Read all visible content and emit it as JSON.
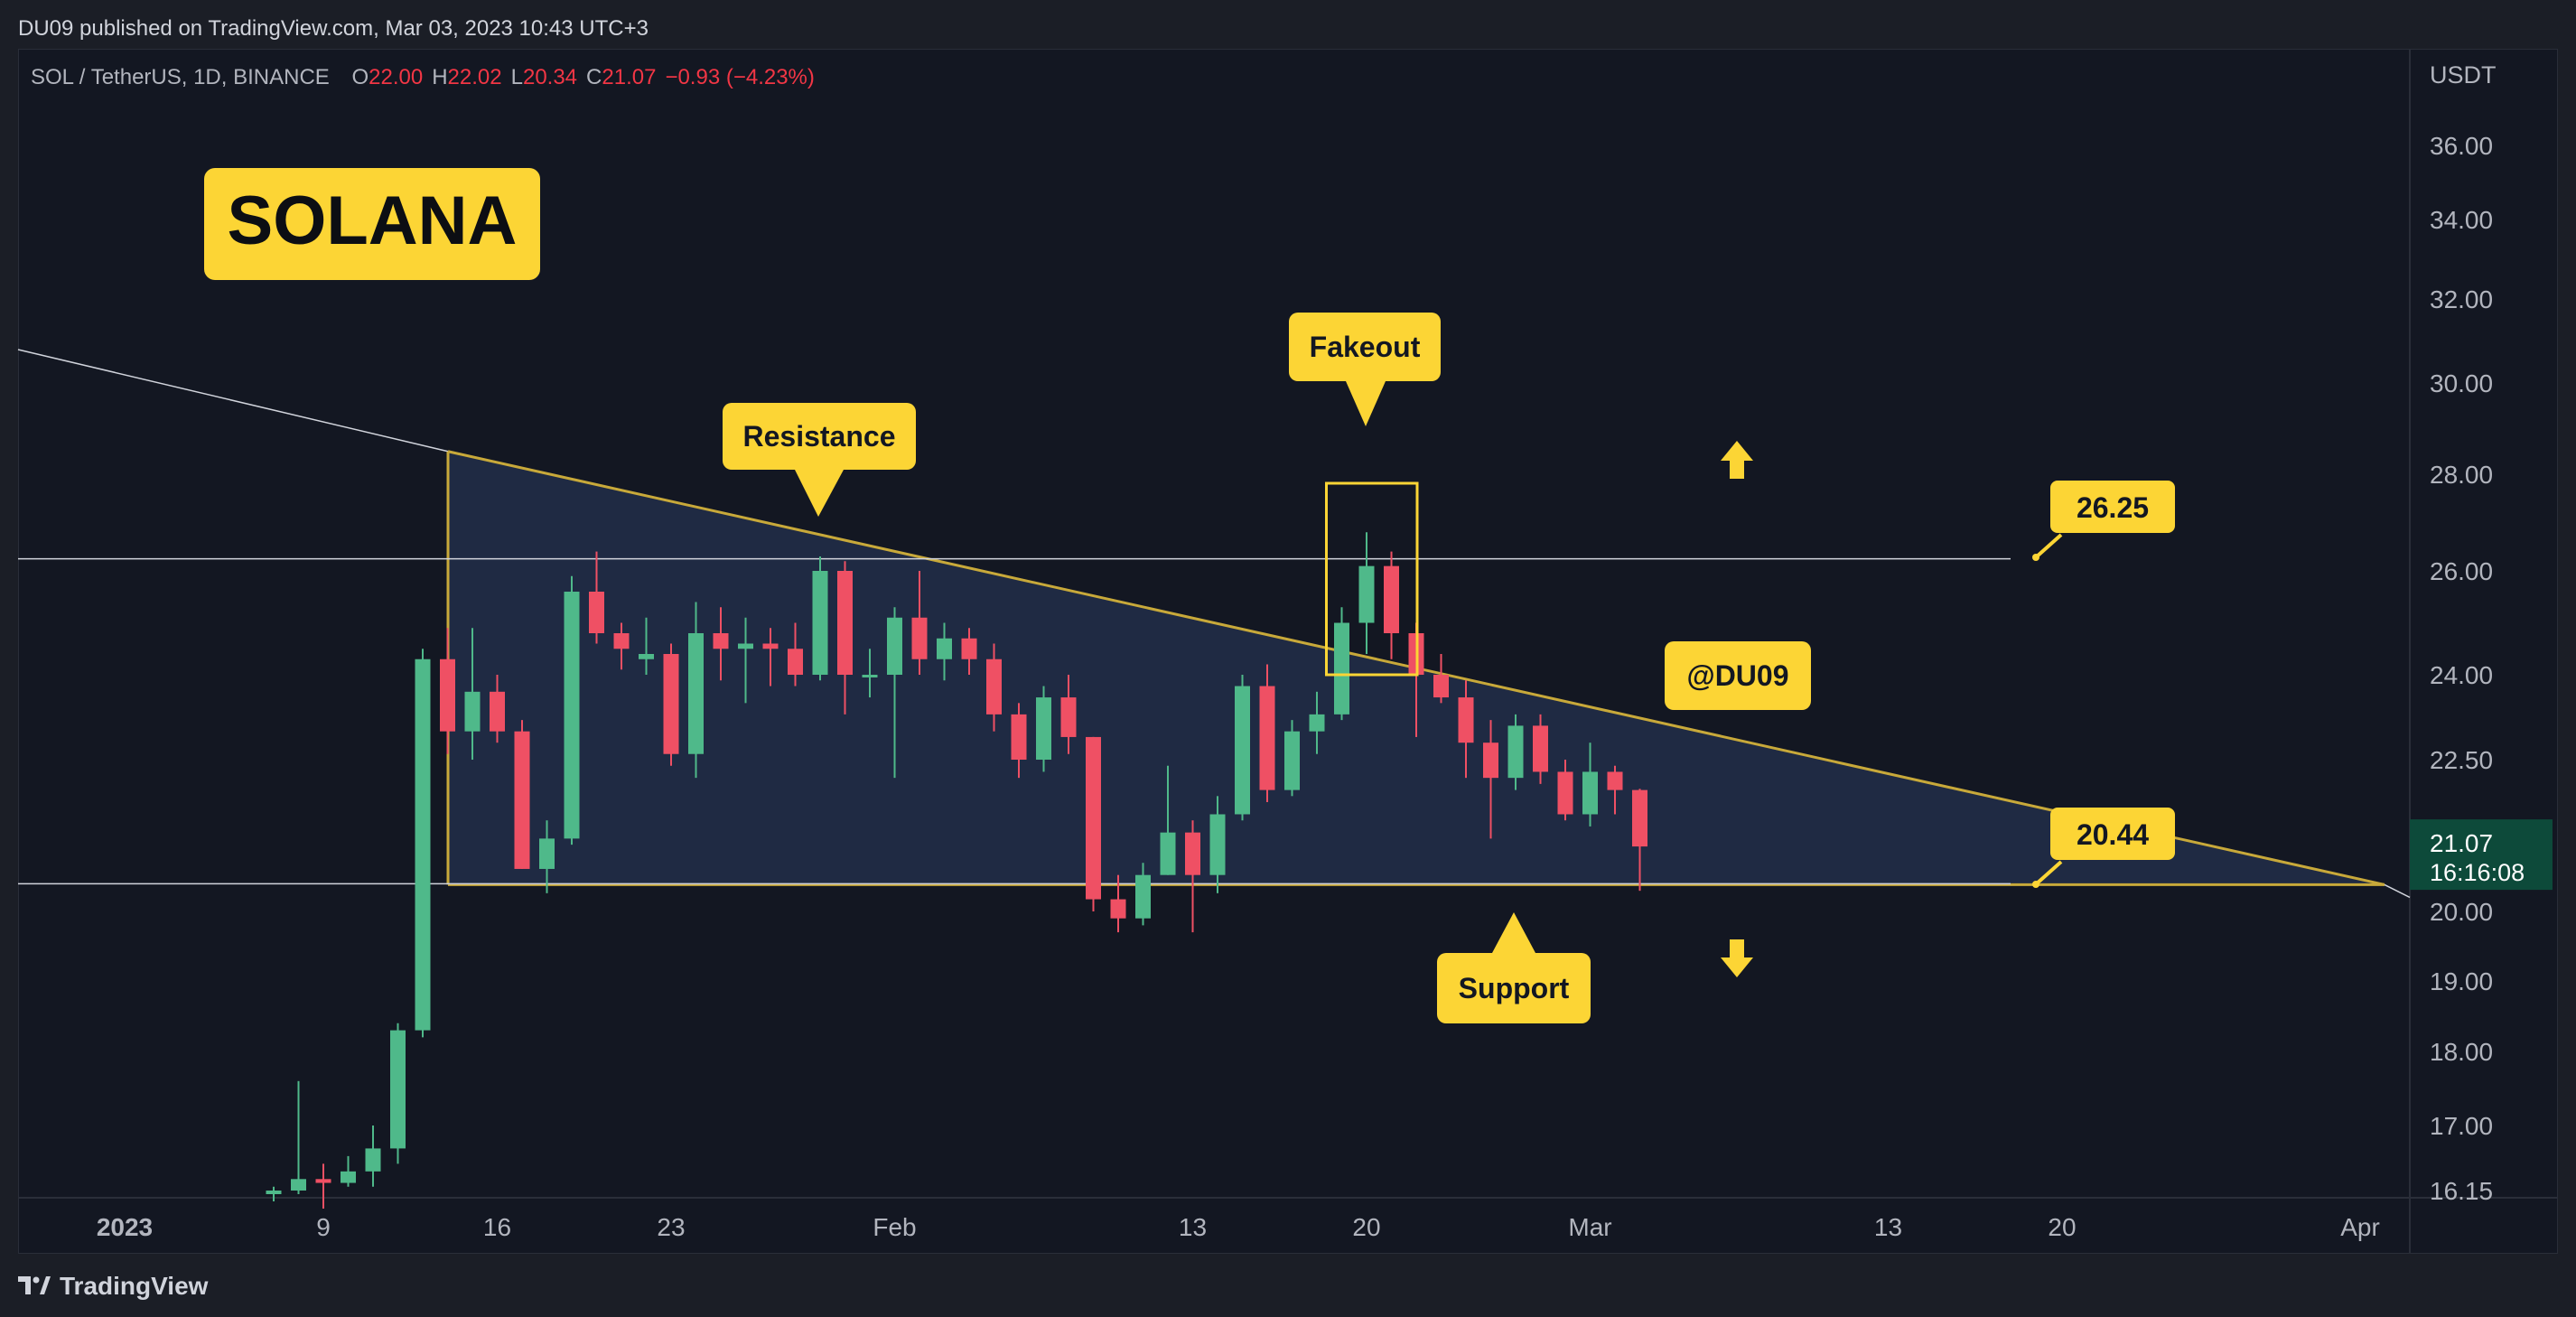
{
  "header": {
    "published": "DU09 published on TradingView.com, Mar 03, 2023 10:43 UTC+3"
  },
  "legend": {
    "symbol": "SOL / TetherUS, 1D, BINANCE",
    "o_label": "O",
    "o": "22.00",
    "h_label": "H",
    "h": "22.02",
    "l_label": "L",
    "l": "20.34",
    "c_label": "C",
    "c": "21.07",
    "change": "−0.93 (−4.23%)"
  },
  "footer": {
    "brand": "TradingView"
  },
  "colors": {
    "up": "#4fb98a",
    "down": "#ef5064",
    "accent": "#fcd535",
    "background": "#131722",
    "triangle_fill": "#2a3a5e"
  },
  "chart_data": {
    "type": "candlestick",
    "title": "SOLANA",
    "currency_label": "USDT",
    "y_ticks": [
      "36.00",
      "34.00",
      "32.00",
      "30.00",
      "28.00",
      "26.00",
      "24.00",
      "22.50",
      "20.00",
      "19.00",
      "18.00",
      "17.00",
      "16.15"
    ],
    "x_ticks": [
      {
        "label": "2023",
        "bold": true
      },
      {
        "label": "9"
      },
      {
        "label": "16"
      },
      {
        "label": "23"
      },
      {
        "label": "Feb"
      },
      {
        "label": "13"
      },
      {
        "label": "20"
      },
      {
        "label": "Mar"
      },
      {
        "label": "13"
      },
      {
        "label": "20"
      },
      {
        "label": "Apr"
      }
    ],
    "price_label": {
      "price": "21.07",
      "countdown": "16:16:08"
    },
    "candles": [
      {
        "date": "2023-01-07",
        "o": 16.1,
        "h": 16.2,
        "l": 16.0,
        "c": 16.15
      },
      {
        "date": "2023-01-08",
        "o": 16.15,
        "h": 17.6,
        "l": 16.1,
        "c": 16.3
      },
      {
        "date": "2023-01-09",
        "o": 16.3,
        "h": 16.5,
        "l": 15.9,
        "c": 16.25
      },
      {
        "date": "2023-01-10",
        "o": 16.25,
        "h": 16.6,
        "l": 16.2,
        "c": 16.4
      },
      {
        "date": "2023-01-11",
        "o": 16.4,
        "h": 17.0,
        "l": 16.2,
        "c": 16.7
      },
      {
        "date": "2023-01-12",
        "o": 16.7,
        "h": 18.4,
        "l": 16.5,
        "c": 18.3
      },
      {
        "date": "2023-01-13",
        "o": 18.3,
        "h": 24.5,
        "l": 18.2,
        "c": 24.3
      },
      {
        "date": "2023-01-14",
        "o": 24.3,
        "h": 24.9,
        "l": 22.6,
        "c": 23.0
      },
      {
        "date": "2023-01-15",
        "o": 23.0,
        "h": 24.9,
        "l": 22.5,
        "c": 23.7
      },
      {
        "date": "2023-01-16",
        "o": 23.7,
        "h": 24.0,
        "l": 22.8,
        "c": 23.0
      },
      {
        "date": "2023-01-17",
        "o": 23.0,
        "h": 23.2,
        "l": 20.7,
        "c": 20.7
      },
      {
        "date": "2023-01-18",
        "o": 20.7,
        "h": 21.5,
        "l": 20.3,
        "c": 21.2
      },
      {
        "date": "2023-01-19",
        "o": 21.2,
        "h": 25.9,
        "l": 21.1,
        "c": 25.6
      },
      {
        "date": "2023-01-20",
        "o": 25.6,
        "h": 26.4,
        "l": 24.6,
        "c": 24.8
      },
      {
        "date": "2023-01-21",
        "o": 24.8,
        "h": 25.0,
        "l": 24.1,
        "c": 24.5
      },
      {
        "date": "2023-01-22",
        "o": 24.3,
        "h": 25.1,
        "l": 24.0,
        "c": 24.4
      },
      {
        "date": "2023-01-23",
        "o": 24.4,
        "h": 24.6,
        "l": 22.4,
        "c": 22.6
      },
      {
        "date": "2023-01-24",
        "o": 22.6,
        "h": 25.4,
        "l": 22.2,
        "c": 24.8
      },
      {
        "date": "2023-01-25",
        "o": 24.8,
        "h": 25.3,
        "l": 23.9,
        "c": 24.5
      },
      {
        "date": "2023-01-26",
        "o": 24.5,
        "h": 25.1,
        "l": 23.5,
        "c": 24.6
      },
      {
        "date": "2023-01-27",
        "o": 24.6,
        "h": 24.9,
        "l": 23.8,
        "c": 24.5
      },
      {
        "date": "2023-01-28",
        "o": 24.5,
        "h": 25.0,
        "l": 23.8,
        "c": 24.0
      },
      {
        "date": "2023-01-29",
        "o": 24.0,
        "h": 26.3,
        "l": 23.9,
        "c": 26.0
      },
      {
        "date": "2023-01-30",
        "o": 26.0,
        "h": 26.2,
        "l": 23.3,
        "c": 24.0
      },
      {
        "date": "2023-01-31",
        "o": 24.0,
        "h": 24.5,
        "l": 23.6,
        "c": 24.0
      },
      {
        "date": "2023-02-01",
        "o": 24.0,
        "h": 25.3,
        "l": 22.2,
        "c": 25.1
      },
      {
        "date": "2023-02-02",
        "o": 25.1,
        "h": 26.0,
        "l": 24.0,
        "c": 24.3
      },
      {
        "date": "2023-02-03",
        "o": 24.3,
        "h": 25.0,
        "l": 23.9,
        "c": 24.7
      },
      {
        "date": "2023-02-04",
        "o": 24.7,
        "h": 24.9,
        "l": 24.0,
        "c": 24.3
      },
      {
        "date": "2023-02-05",
        "o": 24.3,
        "h": 24.6,
        "l": 23.0,
        "c": 23.3
      },
      {
        "date": "2023-02-06",
        "o": 23.3,
        "h": 23.5,
        "l": 22.2,
        "c": 22.5
      },
      {
        "date": "2023-02-07",
        "o": 22.5,
        "h": 23.8,
        "l": 22.3,
        "c": 23.6
      },
      {
        "date": "2023-02-08",
        "o": 23.6,
        "h": 24.0,
        "l": 22.6,
        "c": 22.9
      },
      {
        "date": "2023-02-09",
        "o": 22.9,
        "h": 22.9,
        "l": 20.0,
        "c": 20.2
      },
      {
        "date": "2023-02-10",
        "o": 20.2,
        "h": 20.6,
        "l": 19.7,
        "c": 19.9
      },
      {
        "date": "2023-02-11",
        "o": 19.9,
        "h": 20.8,
        "l": 19.8,
        "c": 20.6
      },
      {
        "date": "2023-02-12",
        "o": 20.6,
        "h": 22.4,
        "l": 20.6,
        "c": 21.3
      },
      {
        "date": "2023-02-13",
        "o": 21.3,
        "h": 21.5,
        "l": 19.7,
        "c": 20.6
      },
      {
        "date": "2023-02-14",
        "o": 20.6,
        "h": 21.9,
        "l": 20.3,
        "c": 21.6
      },
      {
        "date": "2023-02-15",
        "o": 21.6,
        "h": 24.0,
        "l": 21.5,
        "c": 23.8
      },
      {
        "date": "2023-02-16",
        "o": 23.8,
        "h": 24.2,
        "l": 21.8,
        "c": 22.0
      },
      {
        "date": "2023-02-17",
        "o": 22.0,
        "h": 23.2,
        "l": 21.9,
        "c": 23.0
      },
      {
        "date": "2023-02-18",
        "o": 23.0,
        "h": 23.7,
        "l": 22.6,
        "c": 23.3
      },
      {
        "date": "2023-02-19",
        "o": 23.3,
        "h": 25.3,
        "l": 23.2,
        "c": 25.0
      },
      {
        "date": "2023-02-20",
        "o": 25.0,
        "h": 26.8,
        "l": 24.4,
        "c": 26.1
      },
      {
        "date": "2023-02-21",
        "o": 26.1,
        "h": 26.4,
        "l": 24.3,
        "c": 24.8
      },
      {
        "date": "2023-02-22",
        "o": 24.8,
        "h": 25.0,
        "l": 22.9,
        "c": 24.0
      },
      {
        "date": "2023-02-23",
        "o": 24.0,
        "h": 24.4,
        "l": 23.5,
        "c": 23.6
      },
      {
        "date": "2023-02-24",
        "o": 23.6,
        "h": 23.9,
        "l": 22.2,
        "c": 22.8
      },
      {
        "date": "2023-02-25",
        "o": 22.8,
        "h": 23.2,
        "l": 21.2,
        "c": 22.2
      },
      {
        "date": "2023-02-26",
        "o": 22.2,
        "h": 23.3,
        "l": 22.0,
        "c": 23.1
      },
      {
        "date": "2023-02-27",
        "o": 23.1,
        "h": 23.3,
        "l": 22.1,
        "c": 22.3
      },
      {
        "date": "2023-02-28",
        "o": 22.3,
        "h": 22.5,
        "l": 21.5,
        "c": 21.6
      },
      {
        "date": "2023-03-01",
        "o": 21.6,
        "h": 22.8,
        "l": 21.4,
        "c": 22.3
      },
      {
        "date": "2023-03-02",
        "o": 22.3,
        "h": 22.4,
        "l": 21.6,
        "c": 22.0
      },
      {
        "date": "2023-03-03",
        "o": 22.0,
        "h": 22.02,
        "l": 20.34,
        "c": 21.07
      }
    ],
    "levels": [
      {
        "value": 26.25,
        "label": "26.25"
      },
      {
        "value": 20.44,
        "label": "20.44"
      }
    ],
    "annotations": [
      {
        "text": "Resistance"
      },
      {
        "text": "Fakeout"
      },
      {
        "text": "Support"
      },
      {
        "text": "@DU09"
      }
    ]
  }
}
